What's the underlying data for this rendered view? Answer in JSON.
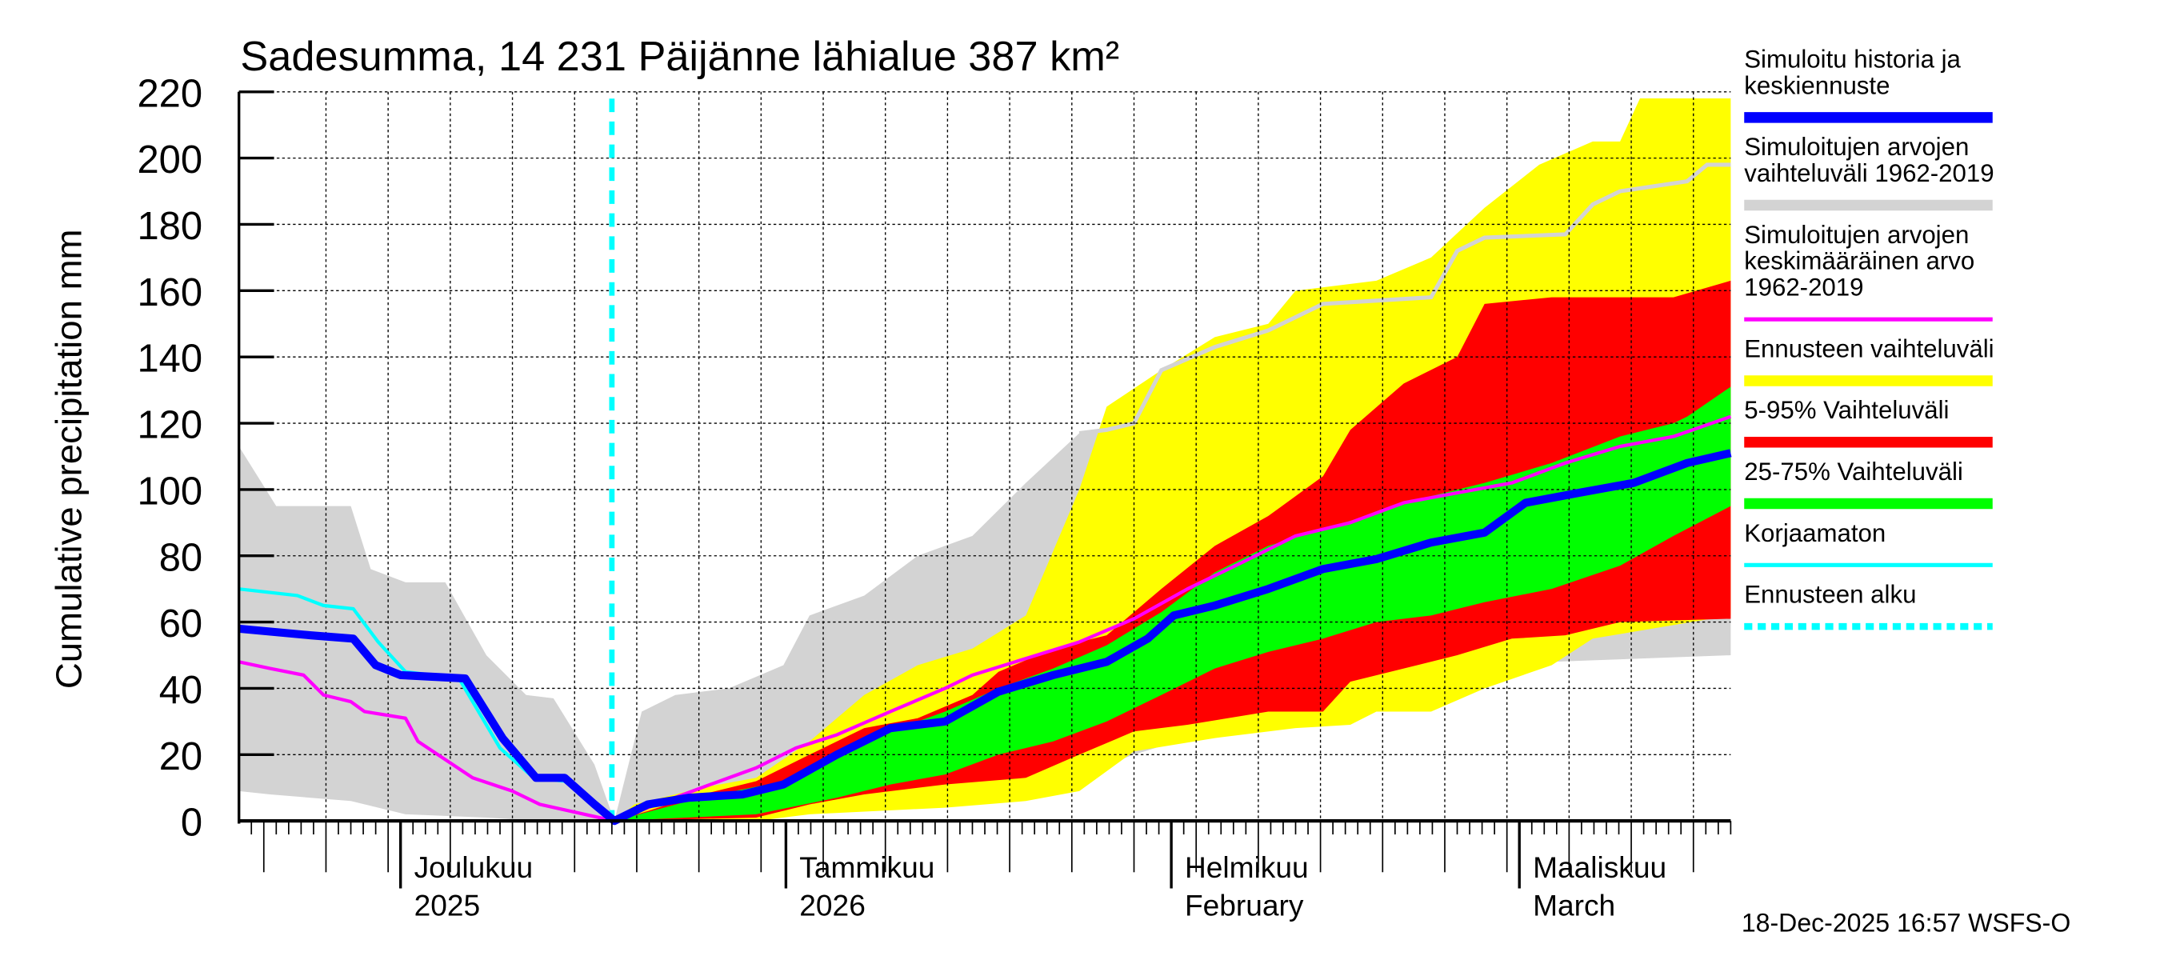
{
  "chart_data": {
    "type": "area",
    "title": "Sadesumma, 14 231 Päijänne lähialue 387 km²",
    "ylabel": "Cumulative precipitation   mm",
    "xlabel": "",
    "x_unit": "days since 2025-11-18",
    "xlim": [
      0,
      120
    ],
    "ylim": [
      0,
      220
    ],
    "yticks": [
      0,
      20,
      40,
      60,
      80,
      100,
      120,
      140,
      160,
      180,
      200,
      220
    ],
    "grid": true,
    "forecast_start_day": 30,
    "month_ticks": [
      {
        "day": 13,
        "label1": "Joulukuu",
        "label2": "2025"
      },
      {
        "day": 44,
        "label1": "Tammikuu",
        "label2": "2026"
      },
      {
        "day": 75,
        "label1": "Helmikuu",
        "label2": "February"
      },
      {
        "day": 103,
        "label1": "Maaliskuu",
        "label2": "March"
      }
    ],
    "bands": [
      {
        "name": "Simuloitujen arvojen vaihteluväli 1962-2019",
        "color": "#d3d3d3",
        "upper": [
          [
            0,
            113
          ],
          [
            3,
            95
          ],
          [
            9,
            95
          ],
          [
            10.6,
            76
          ],
          [
            13.4,
            72
          ],
          [
            16.6,
            72
          ],
          [
            19.9,
            50
          ],
          [
            23.1,
            38
          ],
          [
            25.3,
            37
          ],
          [
            28.6,
            17
          ],
          [
            30.2,
            0
          ],
          [
            32.4,
            33
          ],
          [
            35.1,
            38
          ],
          [
            39.4,
            40
          ],
          [
            43.8,
            47
          ],
          [
            45.9,
            62
          ],
          [
            50.3,
            68
          ],
          [
            54.6,
            80
          ],
          [
            59,
            86
          ],
          [
            63.3,
            102
          ],
          [
            67.6,
            117
          ],
          [
            69.8,
            118
          ],
          [
            72,
            120
          ],
          [
            74.2,
            136
          ],
          [
            78.5,
            143
          ],
          [
            82.8,
            148
          ],
          [
            87.2,
            156
          ],
          [
            95.9,
            158
          ],
          [
            98,
            172
          ],
          [
            100.2,
            176
          ],
          [
            106.7,
            177
          ],
          [
            108.9,
            186
          ],
          [
            111.1,
            190
          ],
          [
            116.5,
            193
          ],
          [
            118.1,
            198
          ],
          [
            120,
            198
          ]
        ],
        "lower": [
          [
            0,
            9
          ],
          [
            2.5,
            8
          ],
          [
            9,
            6
          ],
          [
            13.4,
            2
          ],
          [
            19.9,
            1
          ],
          [
            24.2,
            0
          ],
          [
            30.2,
            0
          ],
          [
            41.6,
            1
          ],
          [
            50.3,
            5
          ],
          [
            56.8,
            6
          ],
          [
            63.3,
            9
          ],
          [
            67.6,
            14
          ],
          [
            72,
            20
          ],
          [
            76.3,
            25
          ],
          [
            78.5,
            28
          ],
          [
            85,
            29
          ],
          [
            89.4,
            30
          ],
          [
            91.5,
            36
          ],
          [
            98,
            43
          ],
          [
            105.6,
            48
          ],
          [
            120,
            50
          ]
        ]
      },
      {
        "name": "Ennusteen vaihteluväli",
        "color": "#ffff00",
        "upper": [
          [
            30.2,
            0
          ],
          [
            31.8,
            5
          ],
          [
            35.1,
            8
          ],
          [
            37.2,
            10
          ],
          [
            41.6,
            13
          ],
          [
            45.9,
            24
          ],
          [
            50.3,
            38
          ],
          [
            54.6,
            47
          ],
          [
            59,
            52
          ],
          [
            63.3,
            62
          ],
          [
            67.6,
            100
          ],
          [
            69.8,
            125
          ],
          [
            74.2,
            136
          ],
          [
            78.5,
            146
          ],
          [
            82.8,
            150
          ],
          [
            85,
            160
          ],
          [
            91.5,
            163
          ],
          [
            95.9,
            170
          ],
          [
            100.2,
            185
          ],
          [
            104.6,
            198
          ],
          [
            108.9,
            205
          ],
          [
            111.1,
            205
          ],
          [
            112.7,
            218
          ],
          [
            120,
            218
          ]
        ],
        "lower": [
          [
            30.2,
            0
          ],
          [
            41.6,
            0
          ],
          [
            45.9,
            2
          ],
          [
            56.8,
            4
          ],
          [
            63.3,
            6
          ],
          [
            67.6,
            9
          ],
          [
            72,
            21
          ],
          [
            78.5,
            25
          ],
          [
            85,
            28
          ],
          [
            89.4,
            29
          ],
          [
            91.5,
            33
          ],
          [
            95.9,
            33
          ],
          [
            100.2,
            40
          ],
          [
            105.6,
            47
          ],
          [
            108.9,
            55
          ],
          [
            120,
            62
          ]
        ]
      },
      {
        "name": "5-95% Vaihteluväli",
        "color": "#ff0000",
        "upper": [
          [
            30.2,
            0
          ],
          [
            32.9,
            3
          ],
          [
            36.2,
            7
          ],
          [
            41.6,
            12
          ],
          [
            45.9,
            20
          ],
          [
            50.3,
            28
          ],
          [
            54.6,
            31
          ],
          [
            59,
            38
          ],
          [
            61.1,
            45
          ],
          [
            65.5,
            52
          ],
          [
            69.8,
            56
          ],
          [
            74.2,
            70
          ],
          [
            78.5,
            83
          ],
          [
            82.8,
            92
          ],
          [
            87.2,
            104
          ],
          [
            89.4,
            118
          ],
          [
            93.7,
            132
          ],
          [
            98,
            140
          ],
          [
            100.2,
            156
          ],
          [
            105.6,
            158
          ],
          [
            115.4,
            158
          ],
          [
            120,
            163
          ]
        ],
        "lower": [
          [
            30.2,
            0
          ],
          [
            41.6,
            1
          ],
          [
            45.9,
            5
          ],
          [
            50.3,
            8
          ],
          [
            56.8,
            11
          ],
          [
            63.3,
            13
          ],
          [
            67.6,
            20
          ],
          [
            72,
            27
          ],
          [
            76.3,
            29
          ],
          [
            82.8,
            33
          ],
          [
            87.2,
            33
          ],
          [
            89.4,
            42
          ],
          [
            93.7,
            46
          ],
          [
            98,
            50
          ],
          [
            102.4,
            55
          ],
          [
            106.7,
            56
          ],
          [
            111.1,
            60
          ],
          [
            120,
            61
          ]
        ]
      },
      {
        "name": "25-75% Vaihteluväli",
        "color": "#00ff00",
        "upper": [
          [
            30.2,
            0
          ],
          [
            37.2,
            7
          ],
          [
            43.8,
            12
          ],
          [
            48.1,
            20
          ],
          [
            52.4,
            27
          ],
          [
            56.8,
            33
          ],
          [
            61.1,
            40
          ],
          [
            65.5,
            46
          ],
          [
            69.8,
            53
          ],
          [
            74.2,
            63
          ],
          [
            78.5,
            75
          ],
          [
            82.8,
            83
          ],
          [
            87.2,
            88
          ],
          [
            91.5,
            93
          ],
          [
            95.9,
            98
          ],
          [
            100.2,
            102
          ],
          [
            105.6,
            108
          ],
          [
            111.1,
            116
          ],
          [
            115.4,
            120
          ],
          [
            116.5,
            122
          ],
          [
            120,
            131
          ]
        ],
        "lower": [
          [
            30.2,
            0
          ],
          [
            41.6,
            2
          ],
          [
            48.1,
            7
          ],
          [
            52.4,
            11
          ],
          [
            56.8,
            14
          ],
          [
            61.1,
            20
          ],
          [
            65.5,
            24
          ],
          [
            69.8,
            30
          ],
          [
            74.2,
            38
          ],
          [
            78.5,
            46
          ],
          [
            82.8,
            51
          ],
          [
            87.2,
            55
          ],
          [
            91.5,
            60
          ],
          [
            95.9,
            62
          ],
          [
            100.2,
            66
          ],
          [
            105.6,
            70
          ],
          [
            111.1,
            77
          ],
          [
            115.4,
            86
          ],
          [
            120,
            95
          ]
        ]
      }
    ],
    "series": [
      {
        "name": "Simuloitujen arvojen keskimääräinen arvo 1962-2019",
        "color": "#ff00ff",
        "width": 2.5,
        "points": [
          [
            0,
            48
          ],
          [
            2.5,
            46
          ],
          [
            5.2,
            44
          ],
          [
            6.8,
            38
          ],
          [
            9,
            36
          ],
          [
            10.1,
            33
          ],
          [
            13.4,
            31
          ],
          [
            14.4,
            24
          ],
          [
            18.8,
            13
          ],
          [
            22,
            9
          ],
          [
            24.2,
            5
          ],
          [
            30.2,
            0
          ],
          [
            32.9,
            4
          ],
          [
            37.2,
            10
          ],
          [
            41.6,
            16
          ],
          [
            44.8,
            22
          ],
          [
            48.1,
            26
          ],
          [
            52.4,
            33
          ],
          [
            56.8,
            40
          ],
          [
            59,
            44
          ],
          [
            63.3,
            49
          ],
          [
            67.6,
            54
          ],
          [
            72,
            61
          ],
          [
            76.3,
            70
          ],
          [
            80.7,
            78
          ],
          [
            85,
            86
          ],
          [
            89.4,
            90
          ],
          [
            93.7,
            96
          ],
          [
            98,
            99
          ],
          [
            102.4,
            102
          ],
          [
            106.7,
            108
          ],
          [
            111.1,
            113
          ],
          [
            115.4,
            116
          ],
          [
            120,
            122
          ]
        ]
      },
      {
        "name": "Korjaamaton",
        "color": "#00ffff",
        "width": 2.5,
        "points": [
          [
            0,
            70
          ],
          [
            4.7,
            68
          ],
          [
            6.8,
            65
          ],
          [
            9.2,
            64
          ],
          [
            11.2,
            54
          ],
          [
            13.4,
            45
          ],
          [
            17.7,
            43
          ],
          [
            21,
            22
          ],
          [
            23.7,
            13
          ],
          [
            26.2,
            12
          ],
          [
            28.6,
            5
          ],
          [
            30.2,
            0
          ]
        ]
      },
      {
        "name": "Simuloitu historia ja keskiennuste",
        "color": "#0000ff",
        "width": 6,
        "points": [
          [
            0,
            58
          ],
          [
            5.8,
            56
          ],
          [
            9.2,
            55
          ],
          [
            11,
            47
          ],
          [
            13,
            44
          ],
          [
            18.2,
            43
          ],
          [
            21.2,
            25
          ],
          [
            23.9,
            13
          ],
          [
            26.2,
            13
          ],
          [
            28.6,
            5
          ],
          [
            30.2,
            0
          ],
          [
            32.9,
            5
          ],
          [
            36.2,
            7
          ],
          [
            40.5,
            8
          ],
          [
            43.8,
            11
          ],
          [
            48.1,
            20
          ],
          [
            52.4,
            28
          ],
          [
            56.8,
            30
          ],
          [
            61.1,
            39
          ],
          [
            65.5,
            44
          ],
          [
            69.8,
            48
          ],
          [
            73.1,
            55
          ],
          [
            75.2,
            62
          ],
          [
            78.5,
            65
          ],
          [
            82.8,
            70
          ],
          [
            87.2,
            76
          ],
          [
            91.5,
            79
          ],
          [
            95.9,
            84
          ],
          [
            100.2,
            87
          ],
          [
            103.5,
            96
          ],
          [
            107.8,
            99
          ],
          [
            112.2,
            102
          ],
          [
            116.5,
            108
          ],
          [
            120,
            111
          ]
        ]
      }
    ],
    "legend": [
      {
        "lines": [
          "Simuloitu historia ja",
          "keskiennuste"
        ],
        "color": "#0000ff",
        "style": "thick"
      },
      {
        "lines": [
          "Simuloitujen arvojen",
          "vaihteluväli 1962-2019"
        ],
        "color": "#d3d3d3",
        "style": "thick"
      },
      {
        "lines": [
          "Simuloitujen arvojen",
          "keskimääräinen arvo",
          "   1962-2019"
        ],
        "color": "#ff00ff",
        "style": "thin"
      },
      {
        "lines": [
          "Ennusteen vaihteluväli"
        ],
        "color": "#ffff00",
        "style": "thick"
      },
      {
        "lines": [
          "5-95% Vaihteluväli"
        ],
        "color": "#ff0000",
        "style": "thick"
      },
      {
        "lines": [
          "25-75% Vaihteluväli"
        ],
        "color": "#00ff00",
        "style": "thick"
      },
      {
        "lines": [
          "Korjaamaton"
        ],
        "color": "#00ffff",
        "style": "thin"
      },
      {
        "lines": [
          "Ennusteen alku"
        ],
        "color": "#00ffff",
        "style": "dotted"
      }
    ],
    "legend_placement": "right",
    "timestamp": "18-Dec-2025 16:57 WSFS-O"
  }
}
